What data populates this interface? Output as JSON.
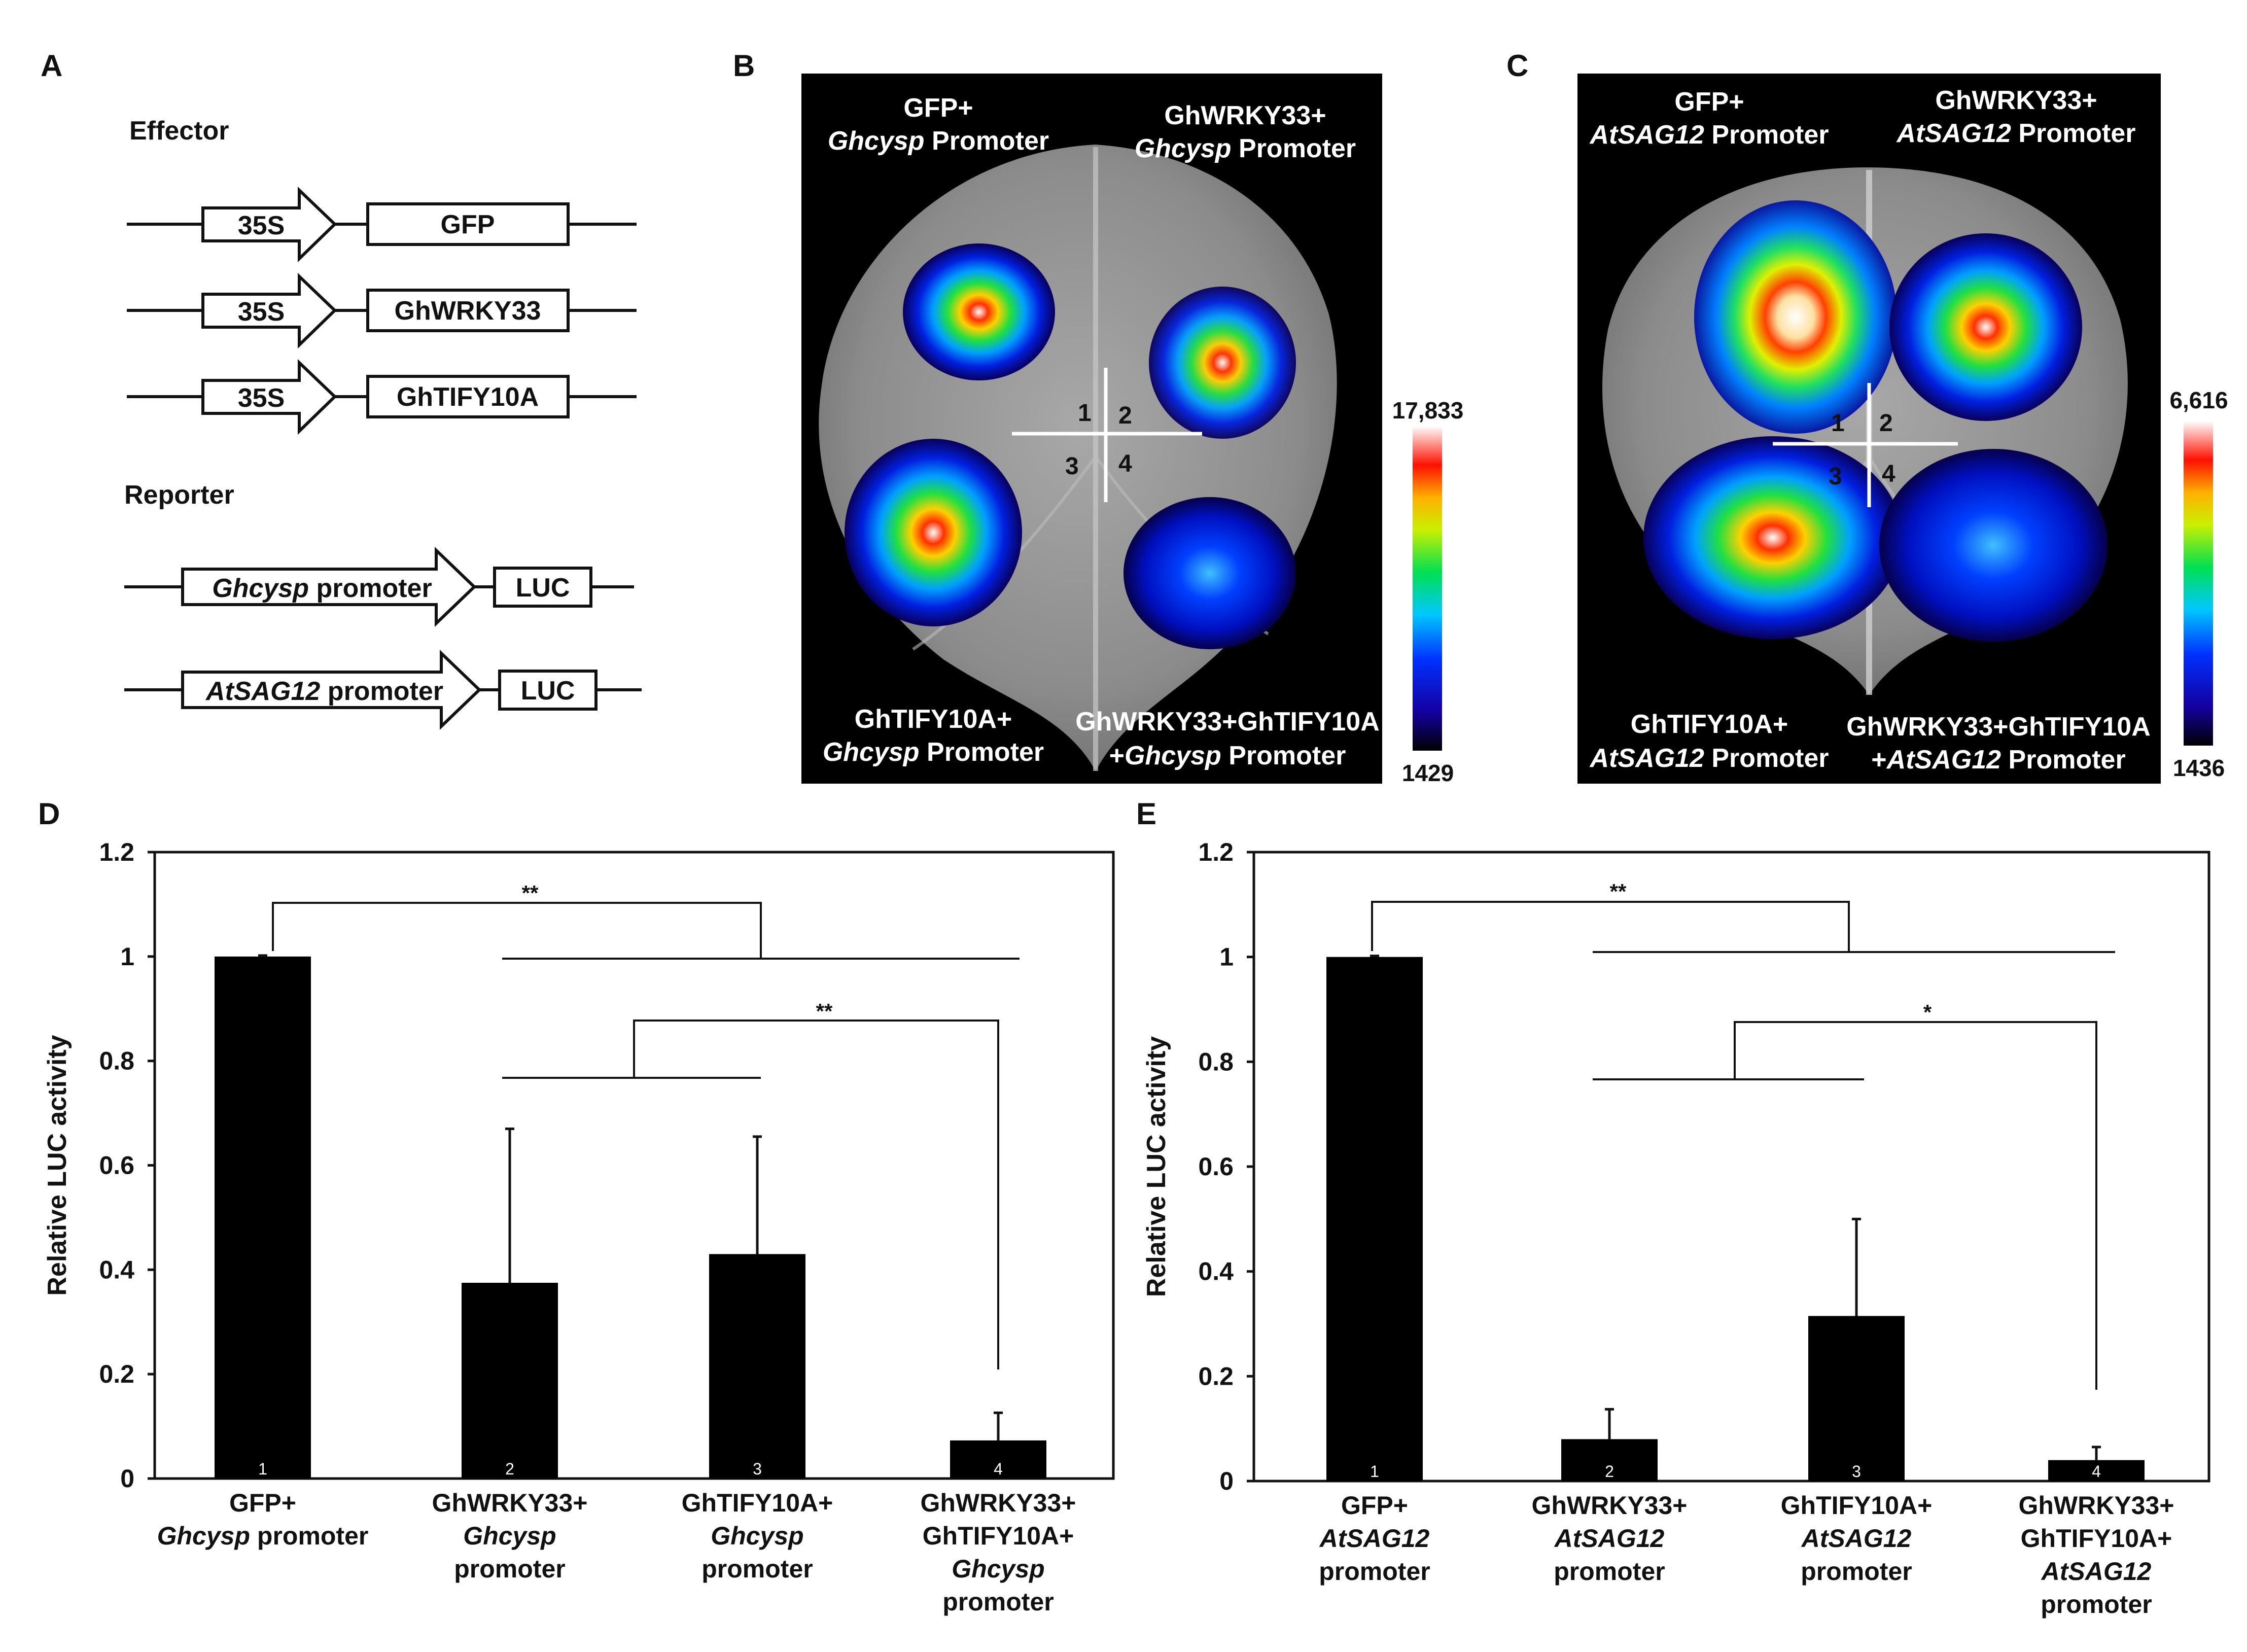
{
  "panel_a": {
    "label": "A",
    "effector_title": "Effector",
    "reporter_title": "Reporter",
    "effectors": [
      {
        "promoter": "35S",
        "gene": "GFP"
      },
      {
        "promoter": "35S",
        "gene": "GhWRKY33"
      },
      {
        "promoter": "35S",
        "gene": "GhTIFY10A"
      }
    ],
    "reporters": [
      {
        "promoter_italic": "Ghcysp",
        "promoter_suffix": " promoter",
        "gene": "LUC"
      },
      {
        "promoter_italic": "AtSAG12",
        "promoter_suffix": " promoter",
        "gene": "LUC"
      }
    ]
  },
  "panel_b": {
    "label": "B",
    "q1_line1": "GFP+",
    "q1_ital": "Ghcysp",
    "q1_rest": " Promoter",
    "q2_line1": "GhWRKY33+",
    "q2_ital": "Ghcysp",
    "q2_rest": " Promoter",
    "q3_line1": "GhTIFY10A+",
    "q3_ital": "Ghcysp",
    "q3_rest": " Promoter",
    "q4_line1": "GhWRKY33+GhTIFY10A",
    "q4_pre": "+",
    "q4_ital": "Ghcysp",
    "q4_rest": " Promoter",
    "quadrants": [
      "1",
      "2",
      "3",
      "4"
    ],
    "scale_max": "17,833",
    "scale_min": "1429"
  },
  "panel_c": {
    "label": "C",
    "q1_line1": "GFP+",
    "q1_ital": "AtSAG12",
    "q1_rest": " Promoter",
    "q2_line1": "GhWRKY33+",
    "q2_ital": "AtSAG12",
    "q2_rest": " Promoter",
    "q3_line1": "GhTIFY10A+",
    "q3_ital": "AtSAG12",
    "q3_rest": " Promoter",
    "q4_line1": "GhWRKY33+GhTIFY10A",
    "q4_pre": "+",
    "q4_ital": "AtSAG12",
    "q4_rest": " Promoter",
    "quadrants": [
      "1",
      "2",
      "3",
      "4"
    ],
    "scale_max": "6,616",
    "scale_min": "1436"
  },
  "chart_data": [
    {
      "panel": "D",
      "type": "bar",
      "ylabel": "Relative LUC activity",
      "ylim": [
        0,
        1.2
      ],
      "yticks": [
        "0",
        "0.2",
        "0.4",
        "0.6",
        "0.8",
        "1",
        "1.2"
      ],
      "categories": [
        [
          "GFP+",
          "Ghcysp promoter"
        ],
        [
          "GhWRKY33+",
          "Ghcysp",
          "promoter"
        ],
        [
          "GhTIFY10A+",
          "Ghcysp",
          "promoter"
        ],
        [
          "GhWRKY33+",
          "GhTIFY10A+",
          "Ghcysp",
          "promoter"
        ]
      ],
      "bar_numbers": [
        "1",
        "2",
        "3",
        "4"
      ],
      "values": [
        1.0,
        0.375,
        0.43,
        0.073
      ],
      "errors": [
        0.0,
        0.295,
        0.225,
        0.053
      ],
      "significance": [
        "**",
        "**"
      ]
    },
    {
      "panel": "E",
      "type": "bar",
      "ylabel": "Relative LUC activity",
      "ylim": [
        0,
        1.2
      ],
      "yticks": [
        "0",
        "0.2",
        "0.4",
        "0.6",
        "0.8",
        "1",
        "1.2"
      ],
      "categories": [
        [
          "GFP+",
          "AtSAG12",
          "promoter"
        ],
        [
          "GhWRKY33+",
          "AtSAG12",
          "promoter"
        ],
        [
          "GhTIFY10A+",
          "AtSAG12",
          "promoter"
        ],
        [
          "GhWRKY33+",
          "GhTIFY10A+",
          "AtSAG12",
          "promoter"
        ]
      ],
      "bar_numbers": [
        "1",
        "2",
        "3",
        "4"
      ],
      "values": [
        1.0,
        0.08,
        0.315,
        0.04
      ],
      "errors": [
        0.0,
        0.057,
        0.185,
        0.025
      ],
      "significance": [
        "**",
        "*"
      ]
    }
  ]
}
